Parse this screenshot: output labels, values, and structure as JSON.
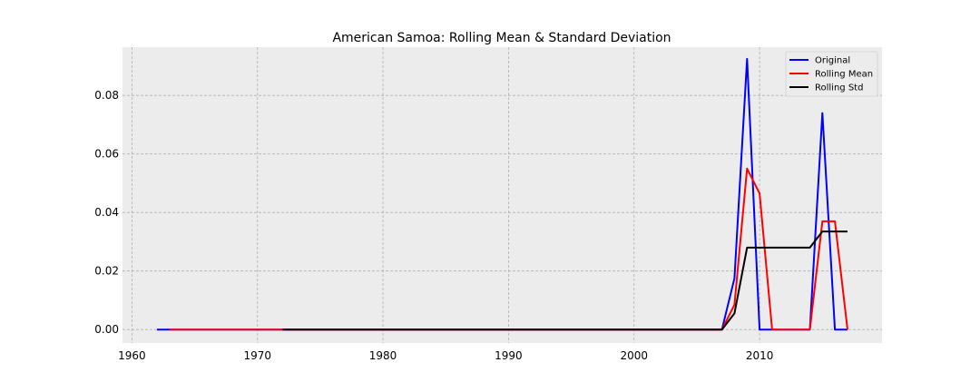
{
  "chart_data": {
    "type": "line",
    "title": "American Samoa: Rolling Mean & Standard Deviation",
    "xlabel": "",
    "ylabel": "",
    "xlim": [
      1959.25,
      2019.75
    ],
    "ylim": [
      -0.0046,
      0.0965
    ],
    "xticks": [
      1960,
      1970,
      1980,
      1990,
      2000,
      2010
    ],
    "yticks": [
      0.0,
      0.02,
      0.04,
      0.06,
      0.08
    ],
    "ytick_labels": [
      "0.00",
      "0.02",
      "0.04",
      "0.06",
      "0.08"
    ],
    "grid": true,
    "legend_position": "top-right",
    "series": [
      {
        "name": "Original",
        "color": "#0000ff",
        "points": [
          [
            1962,
            0.0
          ],
          [
            2007,
            0.0
          ],
          [
            2008,
            0.0175
          ],
          [
            2009,
            0.0925
          ],
          [
            2010,
            0.0
          ],
          [
            2011,
            0.0
          ],
          [
            2014,
            0.0
          ],
          [
            2015,
            0.074
          ],
          [
            2016,
            0.0
          ],
          [
            2017,
            0.0
          ]
        ]
      },
      {
        "name": "Rolling Mean",
        "color": "#ff0000",
        "points": [
          [
            1963,
            0.0
          ],
          [
            2007,
            0.0
          ],
          [
            2008,
            0.0085
          ],
          [
            2009,
            0.055
          ],
          [
            2010,
            0.0465
          ],
          [
            2011,
            0.0
          ],
          [
            2014,
            0.0
          ],
          [
            2015,
            0.037
          ],
          [
            2016,
            0.037
          ],
          [
            2017,
            0.0
          ]
        ]
      },
      {
        "name": "Rolling Std",
        "color": "#000000",
        "points": [
          [
            1972,
            0.0
          ],
          [
            2007,
            0.0
          ],
          [
            2008,
            0.0055
          ],
          [
            2009,
            0.028
          ],
          [
            2014,
            0.028
          ],
          [
            2015,
            0.0335
          ],
          [
            2017,
            0.0335
          ]
        ]
      }
    ]
  }
}
